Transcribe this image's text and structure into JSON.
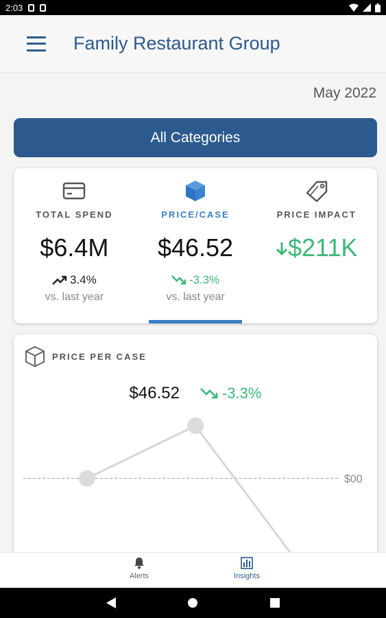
{
  "status_bar": {
    "time": "2:03"
  },
  "app_bar": {
    "title": "Family Restaurant Group"
  },
  "date_label": "May 2022",
  "category_button": "All Categories",
  "kpis": [
    {
      "label": "TOTAL SPEND",
      "value": "$6.4M",
      "change": "3.4%",
      "sub": "vs. last year",
      "icon": "credit-card-icon",
      "active": false
    },
    {
      "label": "PRICE/CASE",
      "value": "$46.52",
      "change": "-3.3%",
      "sub": "vs. last year",
      "icon": "cube-icon",
      "active": true
    },
    {
      "label": "PRICE IMPACT",
      "value": "$211K",
      "icon": "price-tag-icon",
      "active": false
    }
  ],
  "chart": {
    "title": "PRICE PER CASE",
    "value": "$46.52",
    "change": "-3.3%",
    "baseline_label": "$00"
  },
  "chart_data": {
    "type": "line",
    "x": [
      0,
      1,
      2
    ],
    "series": [
      {
        "values": [
          0,
          1,
          -1.7
        ]
      }
    ],
    "ylim": [
      -1.7,
      1.3
    ],
    "grid": false,
    "baseline": 0
  },
  "bottom_nav": {
    "alerts": "Alerts",
    "insights": "Insights"
  },
  "colors": {
    "brand": "#2c5a8e",
    "accent": "#3b7dc6",
    "positive": "#3cb878"
  }
}
